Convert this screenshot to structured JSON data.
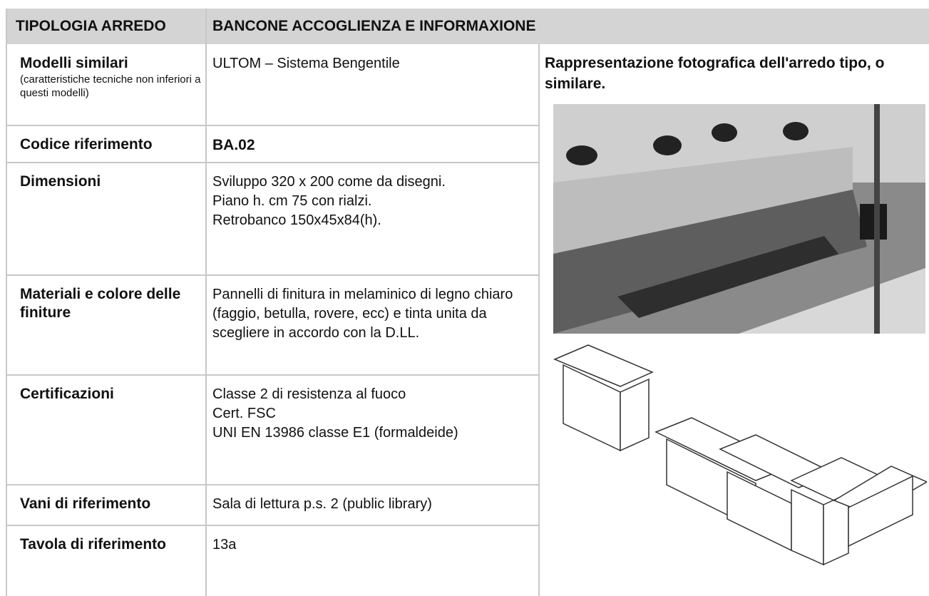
{
  "header": {
    "label": "TIPOLOGIA ARREDO",
    "title": "BANCONE ACCOGLIENZA E INFORMAXIONE"
  },
  "rows": [
    {
      "label": "Modelli similari",
      "note": "(caratteristiche tecniche non inferiori a questi modelli)",
      "value": [
        "ULTOM – Sistema Bengentile"
      ]
    },
    {
      "label": "Codice riferimento",
      "value": [
        "BA.02"
      ]
    },
    {
      "label": "Dimensioni",
      "value": [
        "Sviluppo 320 x 200 come da disegni.",
        "Piano h. cm 75 con rialzi.",
        "Retrobanco 150x45x84(h)."
      ]
    },
    {
      "label": "Materiali e colore delle finiture",
      "value": [
        "Pannelli di finitura in melaminico di legno chiaro (faggio, betulla, rovere, ecc) e tinta unita da scegliere in accordo con la D.LL."
      ]
    },
    {
      "label": "Certificazioni",
      "value": [
        "Classe 2 di resistenza al fuoco",
        "Cert. FSC",
        "UNI EN 13986 classe E1 (formaldeide)"
      ]
    },
    {
      "label": "Vani di riferimento",
      "value": [
        "Sala di lettura p.s. 2 (public library)"
      ]
    },
    {
      "label": "Tavola di riferimento",
      "value": [
        "13a"
      ]
    }
  ],
  "image": {
    "caption": "Rappresentazione fotografica dell'arredo tipo, o similare."
  }
}
